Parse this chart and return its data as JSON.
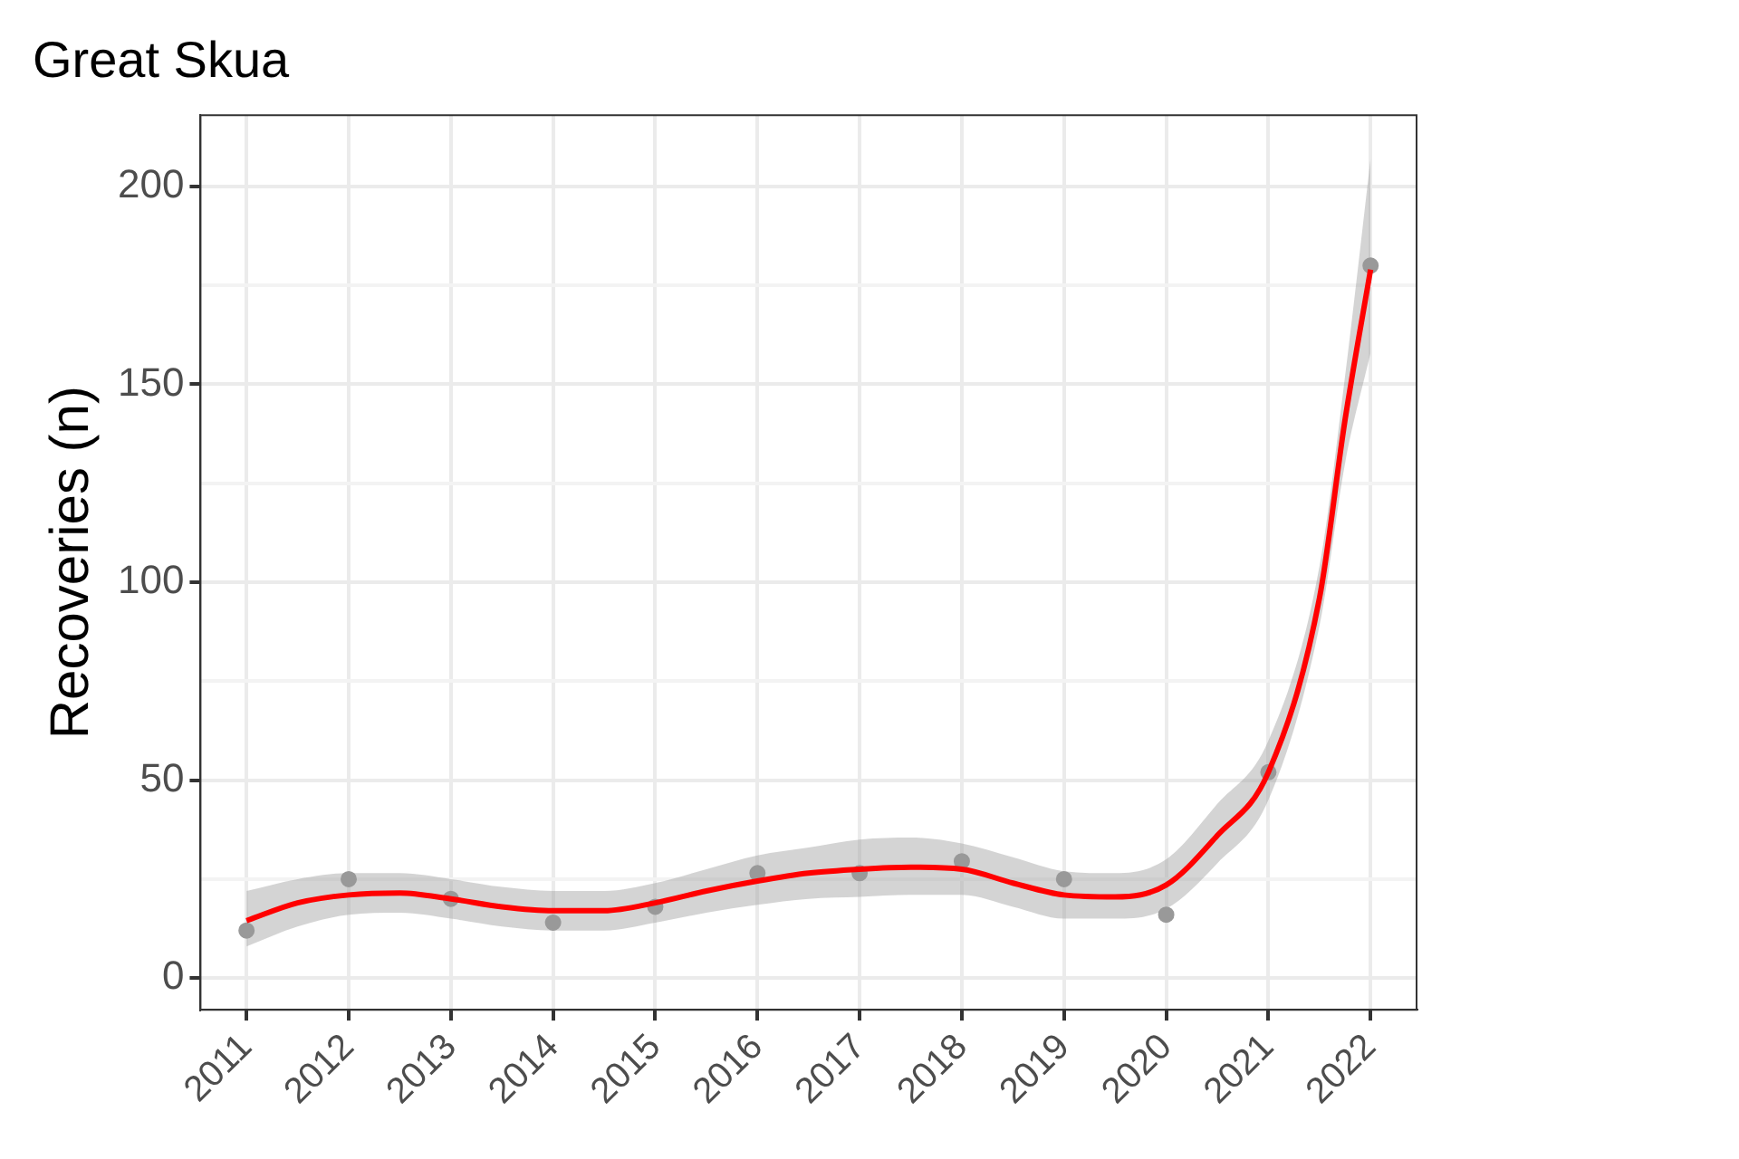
{
  "chart_data": {
    "type": "scatter",
    "title": "Great Skua",
    "ylabel": "Recoveries (n)",
    "xlim": [
      2010.55,
      2022.45
    ],
    "xticks": [
      2011,
      2012,
      2013,
      2014,
      2015,
      2016,
      2017,
      2018,
      2019,
      2020,
      2021,
      2022
    ],
    "ylim": [
      -8,
      218
    ],
    "yticks": [
      0,
      {
        "value": 25,
        "label": null
      },
      50,
      {
        "value": 75,
        "label": null
      },
      100,
      {
        "value": 125,
        "label": null
      },
      150,
      {
        "value": 175,
        "label": null
      },
      200
    ],
    "grid": true,
    "legend": false,
    "series": [
      {
        "color": "#999999",
        "marker": "circle",
        "x": [
          2011,
          2012,
          2013,
          2014,
          2015,
          2016,
          2017,
          2018,
          2019,
          2020,
          2021,
          2022
        ],
        "values": [
          12,
          25,
          20,
          14,
          18,
          26.5,
          26.5,
          29.5,
          25,
          16,
          52,
          180
        ]
      },
      {
        "type": "line",
        "color": "#ff0000",
        "marker": "none",
        "line_style": "solid",
        "x": [
          2011,
          2011.5,
          2012,
          2012.5,
          2013,
          2013.5,
          2014,
          2014.5,
          2015,
          2015.5,
          2016,
          2016.5,
          2017,
          2017.5,
          2018,
          2018.5,
          2019,
          2019.5,
          2020,
          2020.5,
          2021,
          2021.5,
          2021.75,
          2022
        ],
        "values": [
          14.5,
          19,
          21,
          21.5,
          20,
          18,
          17,
          17,
          19,
          22,
          24.5,
          26.5,
          27.5,
          28,
          27.5,
          24,
          21,
          20.5,
          23.5,
          36,
          52,
          96,
          141,
          179
        ],
        "lower": [
          8,
          13,
          16,
          16.5,
          15,
          13,
          12,
          12,
          14,
          16.5,
          18.5,
          20,
          20.5,
          21,
          21,
          18,
          15,
          15,
          17.5,
          29,
          45,
          89,
          130,
          158
        ],
        "upper": [
          22,
          25,
          26.5,
          26.5,
          25,
          23,
          22,
          22,
          24,
          27.5,
          31,
          33,
          35,
          35.5,
          34,
          30.5,
          27,
          26.5,
          30,
          44,
          60,
          104,
          152,
          207
        ]
      }
    ]
  }
}
